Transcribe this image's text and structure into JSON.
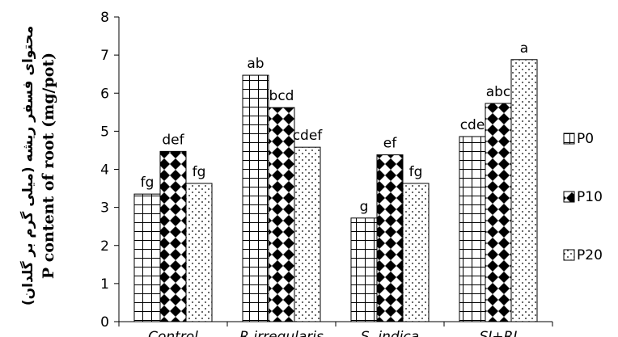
{
  "chart_data": {
    "type": "bar",
    "ylabel_fa": "محتوای فسفر ریشه (میلی گرم بر گلدان)",
    "ylabel_en": "P content of root (mg/pot)",
    "ylim": [
      0,
      8
    ],
    "yticks": [
      0,
      1,
      2,
      3,
      4,
      5,
      6,
      7,
      8
    ],
    "categories": [
      "Control",
      "R.irregularis",
      "S. indica",
      "SI+RI"
    ],
    "series": [
      {
        "name": "P0",
        "pattern": "grid",
        "values": [
          3.35,
          6.47,
          2.72,
          4.86
        ],
        "labels": [
          "fg",
          "ab",
          "g",
          "cde"
        ]
      },
      {
        "name": "P10",
        "pattern": "diamond",
        "values": [
          4.47,
          5.62,
          4.38,
          5.73
        ],
        "labels": [
          "def",
          "bcd",
          "ef",
          "abc"
        ]
      },
      {
        "name": "P20",
        "pattern": "dots",
        "values": [
          3.63,
          4.58,
          3.63,
          6.88
        ],
        "labels": [
          "fg",
          "cdef",
          "fg",
          "a"
        ]
      }
    ],
    "legend_position": "right",
    "grid": false
  }
}
